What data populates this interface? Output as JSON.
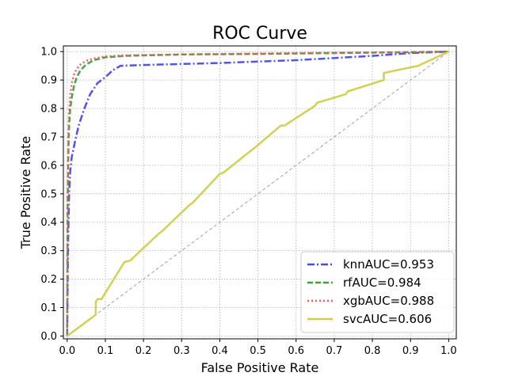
{
  "chart_data": {
    "type": "line",
    "title": "ROC Curve",
    "xlabel": "False Positive Rate",
    "ylabel": "True Positive Rate",
    "xlim": [
      -0.01,
      1.02
    ],
    "ylim": [
      -0.01,
      1.02
    ],
    "xticks": [
      0.0,
      0.1,
      0.2,
      0.3,
      0.4,
      0.5,
      0.6,
      0.7,
      0.8,
      0.9,
      1.0
    ],
    "yticks": [
      0.0,
      0.1,
      0.2,
      0.3,
      0.4,
      0.5,
      0.6,
      0.7,
      0.8,
      0.9,
      1.0
    ],
    "xtick_labels": [
      "0.0",
      "0.1",
      "0.2",
      "0.3",
      "0.4",
      "0.5",
      "0.6",
      "0.7",
      "0.8",
      "0.9",
      "1.0"
    ],
    "ytick_labels": [
      "0.0",
      "0.1",
      "0.2",
      "0.3",
      "0.4",
      "0.5",
      "0.6",
      "0.7",
      "0.8",
      "0.9",
      "1.0"
    ],
    "grid": true,
    "legend_position": "lower-right",
    "diagonal": {
      "x": [
        0,
        1
      ],
      "y": [
        0,
        1
      ],
      "color": "#a0a0a0",
      "style": "dashed"
    },
    "series": [
      {
        "name": "knnAUC=0.953",
        "color": "#4a4ae6",
        "style": "dashdot",
        "x": [
          0,
          0.002,
          0.005,
          0.008,
          0.012,
          0.02,
          0.03,
          0.045,
          0.06,
          0.08,
          0.1,
          0.12,
          0.14,
          0.2,
          0.4,
          0.6,
          0.8,
          0.9,
          1.0
        ],
        "y": [
          0,
          0.3,
          0.5,
          0.58,
          0.63,
          0.68,
          0.74,
          0.8,
          0.85,
          0.89,
          0.91,
          0.935,
          0.95,
          0.953,
          0.96,
          0.97,
          0.985,
          0.995,
          1.0
        ]
      },
      {
        "name": "rfAUC=0.984",
        "color": "#3f9f3f",
        "style": "dashed",
        "x": [
          0,
          0.001,
          0.003,
          0.005,
          0.008,
          0.012,
          0.018,
          0.025,
          0.035,
          0.05,
          0.07,
          0.1,
          0.15,
          0.3,
          0.5,
          0.7,
          0.9,
          1.0
        ],
        "y": [
          0,
          0.45,
          0.65,
          0.74,
          0.8,
          0.84,
          0.88,
          0.91,
          0.935,
          0.955,
          0.97,
          0.98,
          0.985,
          0.99,
          0.992,
          0.995,
          0.998,
          1.0
        ]
      },
      {
        "name": "xgbAUC=0.988",
        "color": "#ef5a5a",
        "style": "dotted",
        "x": [
          0,
          0.001,
          0.003,
          0.005,
          0.008,
          0.012,
          0.018,
          0.025,
          0.035,
          0.05,
          0.07,
          0.1,
          0.15,
          0.3,
          0.5,
          0.7,
          0.9,
          1.0
        ],
        "y": [
          0,
          0.5,
          0.7,
          0.79,
          0.85,
          0.89,
          0.92,
          0.94,
          0.955,
          0.968,
          0.976,
          0.983,
          0.987,
          0.99,
          0.993,
          0.996,
          0.998,
          1.0
        ]
      },
      {
        "name": "svcAUC=0.606",
        "color": "#cfcf4a",
        "style": "solid",
        "x": [
          0,
          0.075,
          0.075,
          0.08,
          0.09,
          0.15,
          0.165,
          0.24,
          0.25,
          0.32,
          0.33,
          0.4,
          0.41,
          0.48,
          0.49,
          0.56,
          0.57,
          0.65,
          0.655,
          0.73,
          0.735,
          0.83,
          0.83,
          0.92,
          1.0
        ],
        "y": [
          0,
          0.075,
          0.12,
          0.13,
          0.13,
          0.26,
          0.265,
          0.36,
          0.37,
          0.46,
          0.47,
          0.57,
          0.575,
          0.65,
          0.66,
          0.74,
          0.74,
          0.81,
          0.82,
          0.85,
          0.86,
          0.9,
          0.925,
          0.95,
          1.0
        ]
      }
    ]
  }
}
